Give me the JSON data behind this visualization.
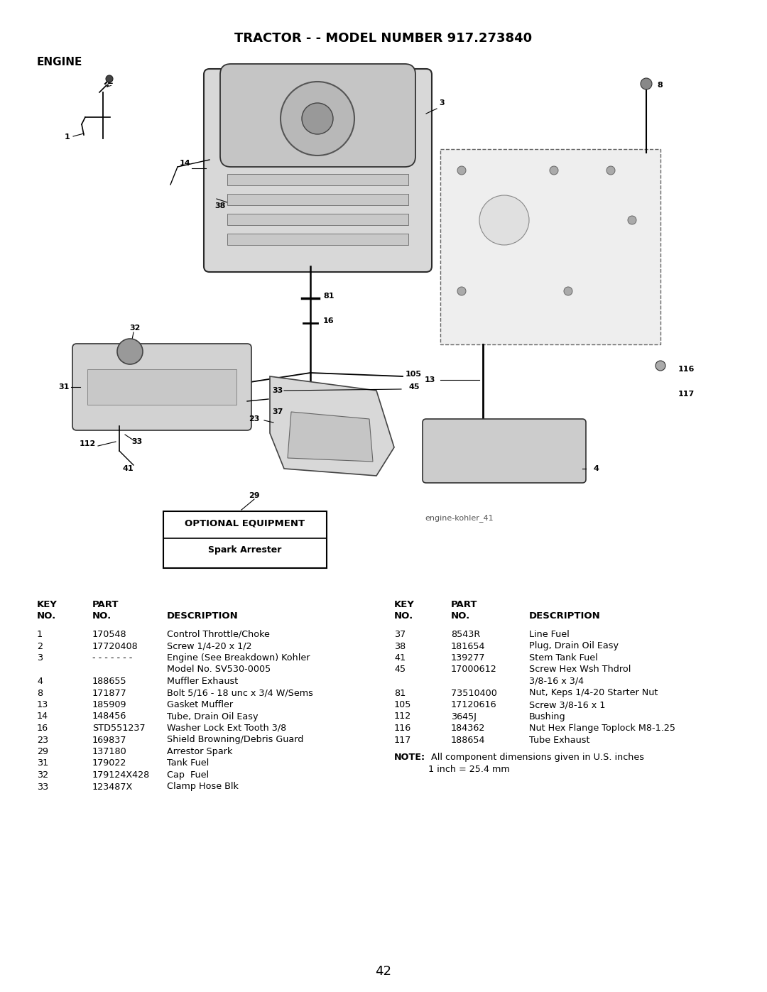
{
  "title": "TRACTOR - - MODEL NUMBER 917.273840",
  "section": "ENGINE",
  "image_label": "engine-kohler_41",
  "optional_equipment_title": "OPTIONAL EQUIPMENT",
  "optional_equipment_item": "Spark Arrester",
  "page_number": "42",
  "parts_left": [
    [
      "1",
      "170548",
      "Control Throttle/Choke",
      false
    ],
    [
      "2",
      "17720408",
      "Screw 1/4-20 x 1/2",
      false
    ],
    [
      "3",
      "- - - - - - -",
      "Engine (See Breakdown) Kohler",
      true
    ],
    [
      "",
      "",
      "Model No. SV530-0005",
      false
    ],
    [
      "4",
      "188655",
      "Muffler Exhaust",
      false
    ],
    [
      "8",
      "171877",
      "Bolt 5/16 - 18 unc x 3/4 W/Sems",
      false
    ],
    [
      "13",
      "185909",
      "Gasket Muffler",
      false
    ],
    [
      "14",
      "148456",
      "Tube, Drain Oil Easy",
      false
    ],
    [
      "16",
      "STD551237",
      "Washer Lock Ext Tooth 3/8",
      false
    ],
    [
      "23",
      "169837",
      "Shield Browning/Debris Guard",
      false
    ],
    [
      "29",
      "137180",
      "Arrestor Spark",
      false
    ],
    [
      "31",
      "179022",
      "Tank Fuel",
      false
    ],
    [
      "32",
      "179124X428",
      "Cap  Fuel",
      false
    ],
    [
      "33",
      "123487X",
      "Clamp Hose Blk",
      false
    ]
  ],
  "parts_right": [
    [
      "37",
      "8543R",
      "Line Fuel",
      false
    ],
    [
      "38",
      "181654",
      "Plug, Drain Oil Easy",
      false
    ],
    [
      "41",
      "139277",
      "Stem Tank Fuel",
      false
    ],
    [
      "45",
      "17000612",
      "Screw Hex Wsh Thdrol",
      true
    ],
    [
      "",
      "",
      "3/8-16 x 3/4",
      false
    ],
    [
      "81",
      "73510400",
      "Nut, Keps 1/4-20 Starter Nut",
      false
    ],
    [
      "105",
      "17120616",
      "Screw 3/8-16 x 1",
      false
    ],
    [
      "112",
      "3645J",
      "Bushing",
      false
    ],
    [
      "116",
      "184362",
      "Nut Hex Flange Toplock M8-1.25",
      false
    ],
    [
      "117",
      "188654",
      "Tube Exhaust",
      false
    ]
  ],
  "bg_color": "#ffffff",
  "text_color": "#000000",
  "title_fontsize": 13,
  "section_fontsize": 11,
  "table_fontsize": 9.2,
  "header_fontsize": 9.5
}
